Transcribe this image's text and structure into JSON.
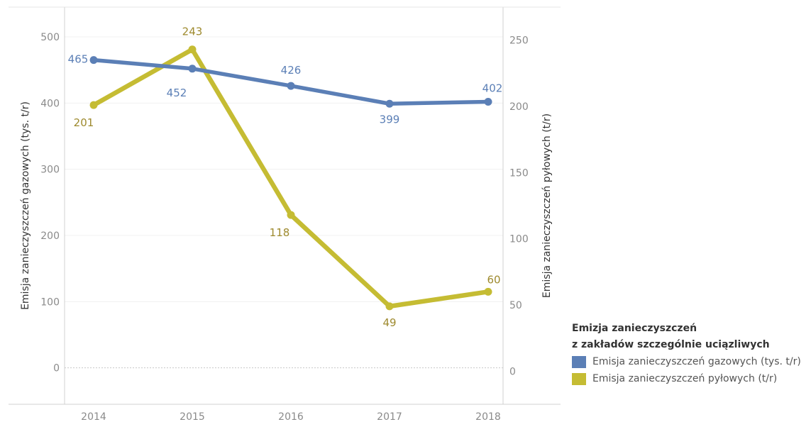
{
  "chart_data": {
    "type": "line",
    "categories": [
      "2014",
      "2015",
      "2016",
      "2017",
      "2018"
    ],
    "y_left": {
      "label": "Emisja zanieczyszczeń gazowych (tys. t/r)",
      "ticks": [
        "0",
        "100",
        "200",
        "300",
        "400",
        "500"
      ],
      "range": [
        -55,
        545
      ]
    },
    "y_right": {
      "label": "Emisja zanieczyszczeń pyłowych (t/r)",
      "ticks": [
        "0",
        "50",
        "100",
        "150",
        "200",
        "250"
      ],
      "range": [
        -25,
        275
      ]
    },
    "series": [
      {
        "name": "Emisja zanieczyszczeń gazowych (tys. t/r)",
        "axis": "left",
        "color": "#5b7fb6",
        "values": [
          465,
          452,
          426,
          399,
          402
        ],
        "labels": [
          "465",
          "452",
          "426",
          "399",
          "402"
        ]
      },
      {
        "name": "Emisja zanieczyszczeń pyłowych (t/r)",
        "axis": "right",
        "color": "#c5bc33",
        "label_color": "#9e8a2e",
        "values": [
          201,
          243,
          118,
          49,
          60
        ],
        "labels": [
          "201",
          "243",
          "118",
          "49",
          "60"
        ]
      }
    ],
    "legend": {
      "title_line1": "Emizja zanieczyszczeń",
      "title_line2": "z zakładów szczególnie uciązliwych",
      "position": "bottom-right"
    },
    "grid": true
  }
}
